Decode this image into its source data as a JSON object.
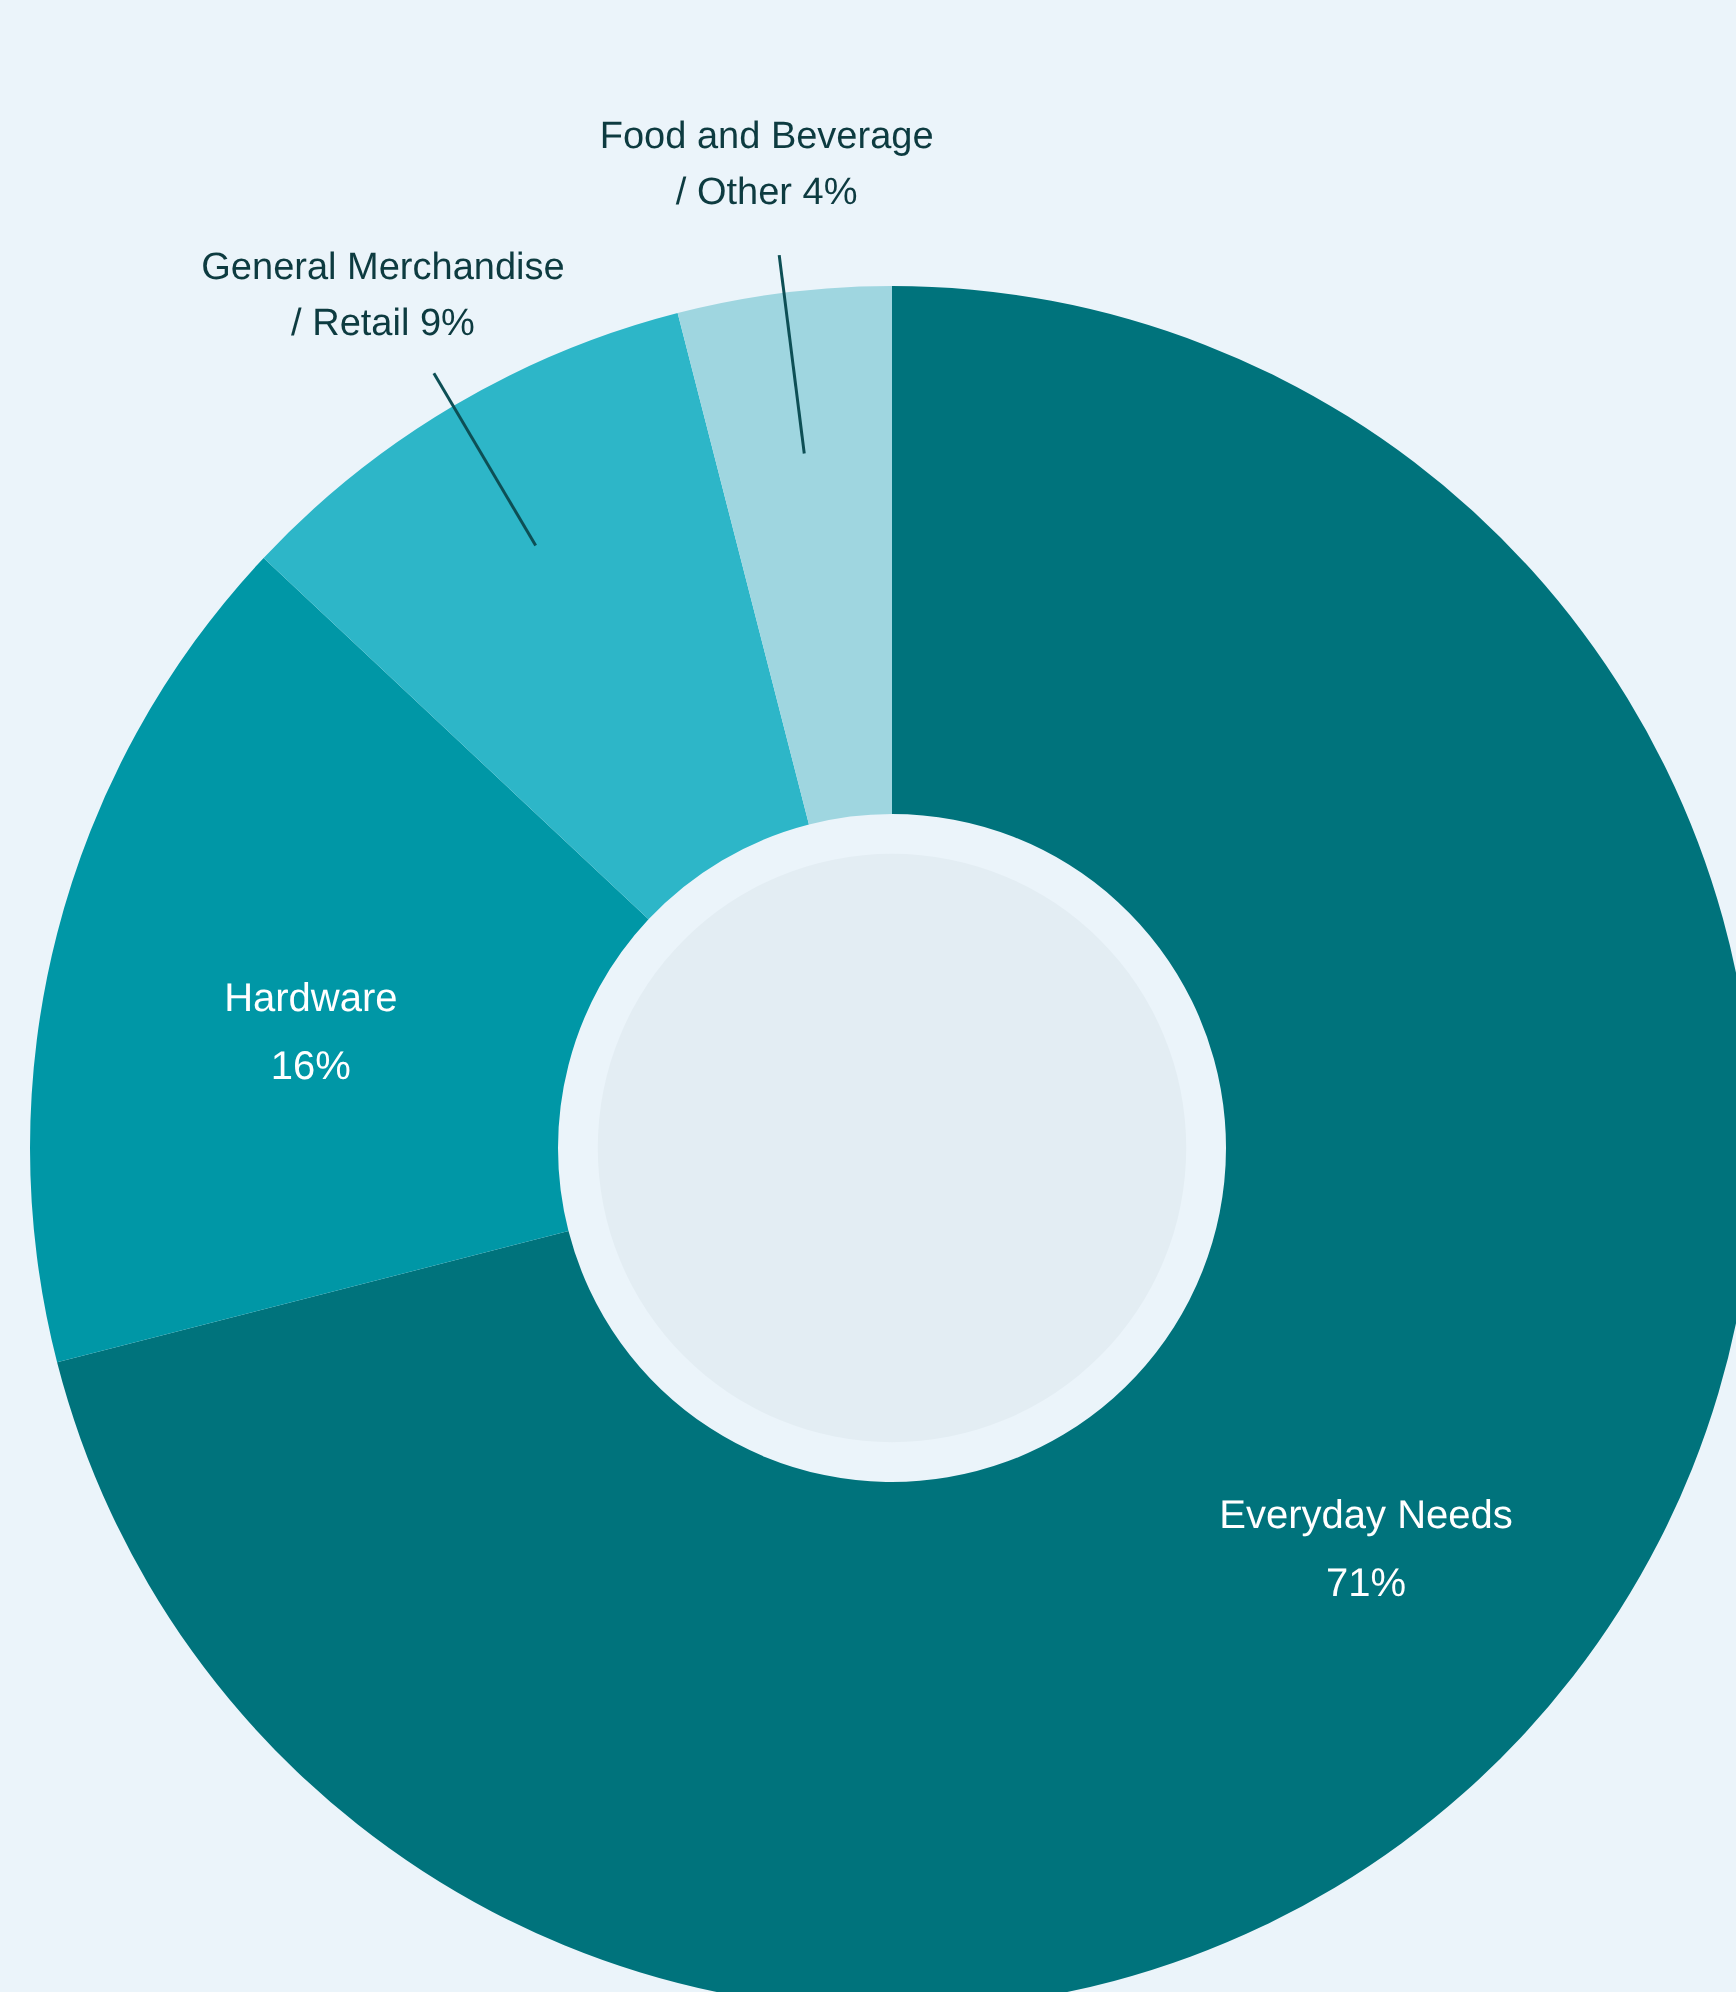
{
  "chart_data": {
    "type": "donut",
    "categories": [
      "Everyday Needs",
      "Hardware",
      "General Merchandise / Retail",
      "Food and Beverage / Other"
    ],
    "values": [
      71,
      16,
      9,
      4
    ],
    "value_labels": [
      "71%",
      "16%",
      "9%",
      "4%"
    ],
    "colors": [
      "#00737c",
      "#0097a6",
      "#2db6c8",
      "#9fd6e0"
    ]
  }
}
